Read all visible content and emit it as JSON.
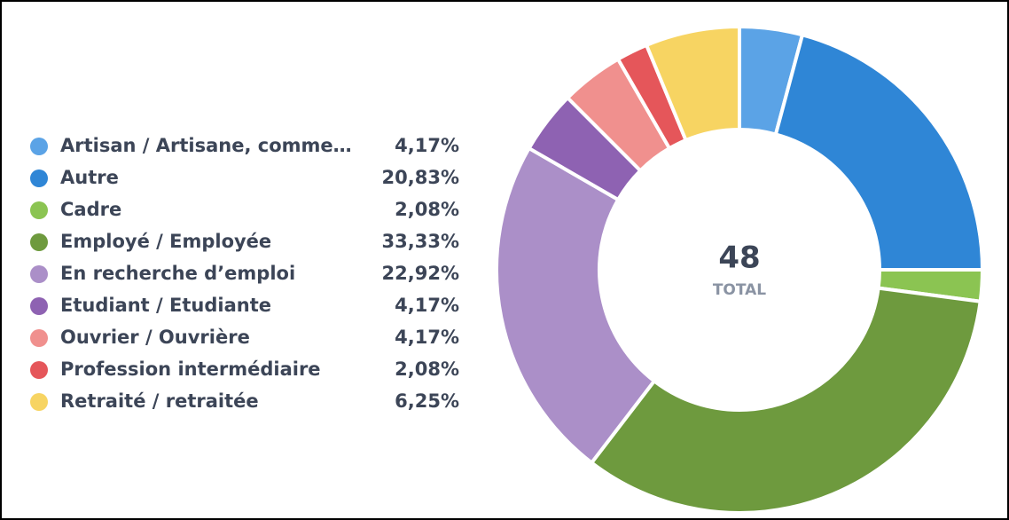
{
  "chart_data": {
    "type": "donut",
    "categories": [
      "Artisan / Artisane, comme…",
      "Autre",
      "Cadre",
      "Employé / Employée",
      "En recherche d’emploi",
      "Etudiant / Etudiante",
      "Ouvrier / Ouvrière",
      "Profession intermédiaire",
      "Retraité / retraitée"
    ],
    "values": [
      4.17,
      20.83,
      2.08,
      33.33,
      22.92,
      4.17,
      4.17,
      2.08,
      6.25
    ],
    "value_labels": [
      "4,17%",
      "20,83%",
      "2,08%",
      "33,33%",
      "22,92%",
      "4,17%",
      "4,17%",
      "2,08%",
      "6,25%"
    ],
    "colors": [
      "#5ba3e6",
      "#2f86d6",
      "#8bc452",
      "#6e9a3e",
      "#ab8fc8",
      "#8e62b2",
      "#f0908e",
      "#e5565a",
      "#f7d462"
    ],
    "total": 48,
    "total_label": "TOTAL",
    "legend": "left"
  }
}
